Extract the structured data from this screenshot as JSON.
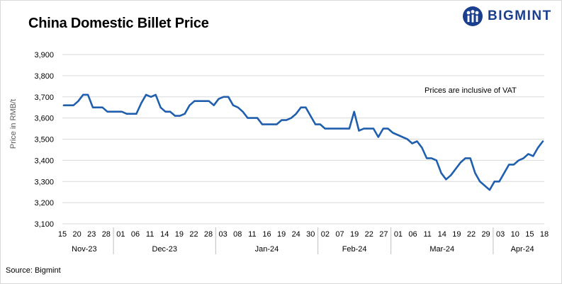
{
  "header": {
    "title": "China Domestic Billet Price",
    "brand": "BIGMINT"
  },
  "footer": {
    "source": "Source: Bigmint"
  },
  "colors": {
    "line": "#1f5fae",
    "brand": "#1a3f8f",
    "grid": "#d9d9d9"
  },
  "chart_data": {
    "type": "line",
    "title": "China Domestic Billet Price",
    "xlabel": "",
    "ylabel": "Price in RMB/t",
    "ylim": [
      3100,
      3900
    ],
    "yticks": [
      3100,
      3200,
      3300,
      3400,
      3500,
      3600,
      3700,
      3800,
      3900
    ],
    "grid": "horizontal",
    "annotation": "Prices are inclusive of VAT",
    "day_ticks": [
      "15",
      "20",
      "23",
      "28",
      "01",
      "06",
      "11",
      "14",
      "19",
      "22",
      "28",
      "03",
      "08",
      "11",
      "16",
      "19",
      "24",
      "30",
      "02",
      "07",
      "19",
      "22",
      "27",
      "01",
      "06",
      "11",
      "14",
      "19",
      "22",
      "29",
      "03",
      "10",
      "15",
      "18"
    ],
    "month_labels": [
      "Nov-23",
      "Dec-23",
      "Jan-24",
      "Feb-24",
      "Mar-24",
      "Apr-24"
    ],
    "series": [
      {
        "values": [
          3660,
          3660,
          3660,
          3680,
          3710,
          3710,
          3650,
          3650,
          3650,
          3630,
          3630,
          3630,
          3630,
          3620,
          3620,
          3620,
          3670,
          3710,
          3700,
          3710,
          3650,
          3630,
          3630,
          3610,
          3610,
          3620,
          3660,
          3680,
          3680,
          3680,
          3680,
          3660,
          3690,
          3700,
          3700,
          3660,
          3650,
          3630,
          3600,
          3600,
          3600,
          3570,
          3570,
          3570,
          3570,
          3590,
          3590,
          3600,
          3620,
          3650,
          3650,
          3610,
          3570,
          3570,
          3550,
          3550,
          3550,
          3550,
          3550,
          3550,
          3630,
          3540,
          3550,
          3550,
          3550,
          3510,
          3550,
          3550,
          3530,
          3520,
          3510,
          3500,
          3480,
          3490,
          3460,
          3410,
          3410,
          3400,
          3340,
          3310,
          3330,
          3360,
          3390,
          3410,
          3410,
          3340,
          3300,
          3280,
          3260,
          3300,
          3300,
          3340,
          3380,
          3380,
          3400,
          3410,
          3430,
          3420,
          3460,
          3490
        ]
      }
    ]
  }
}
